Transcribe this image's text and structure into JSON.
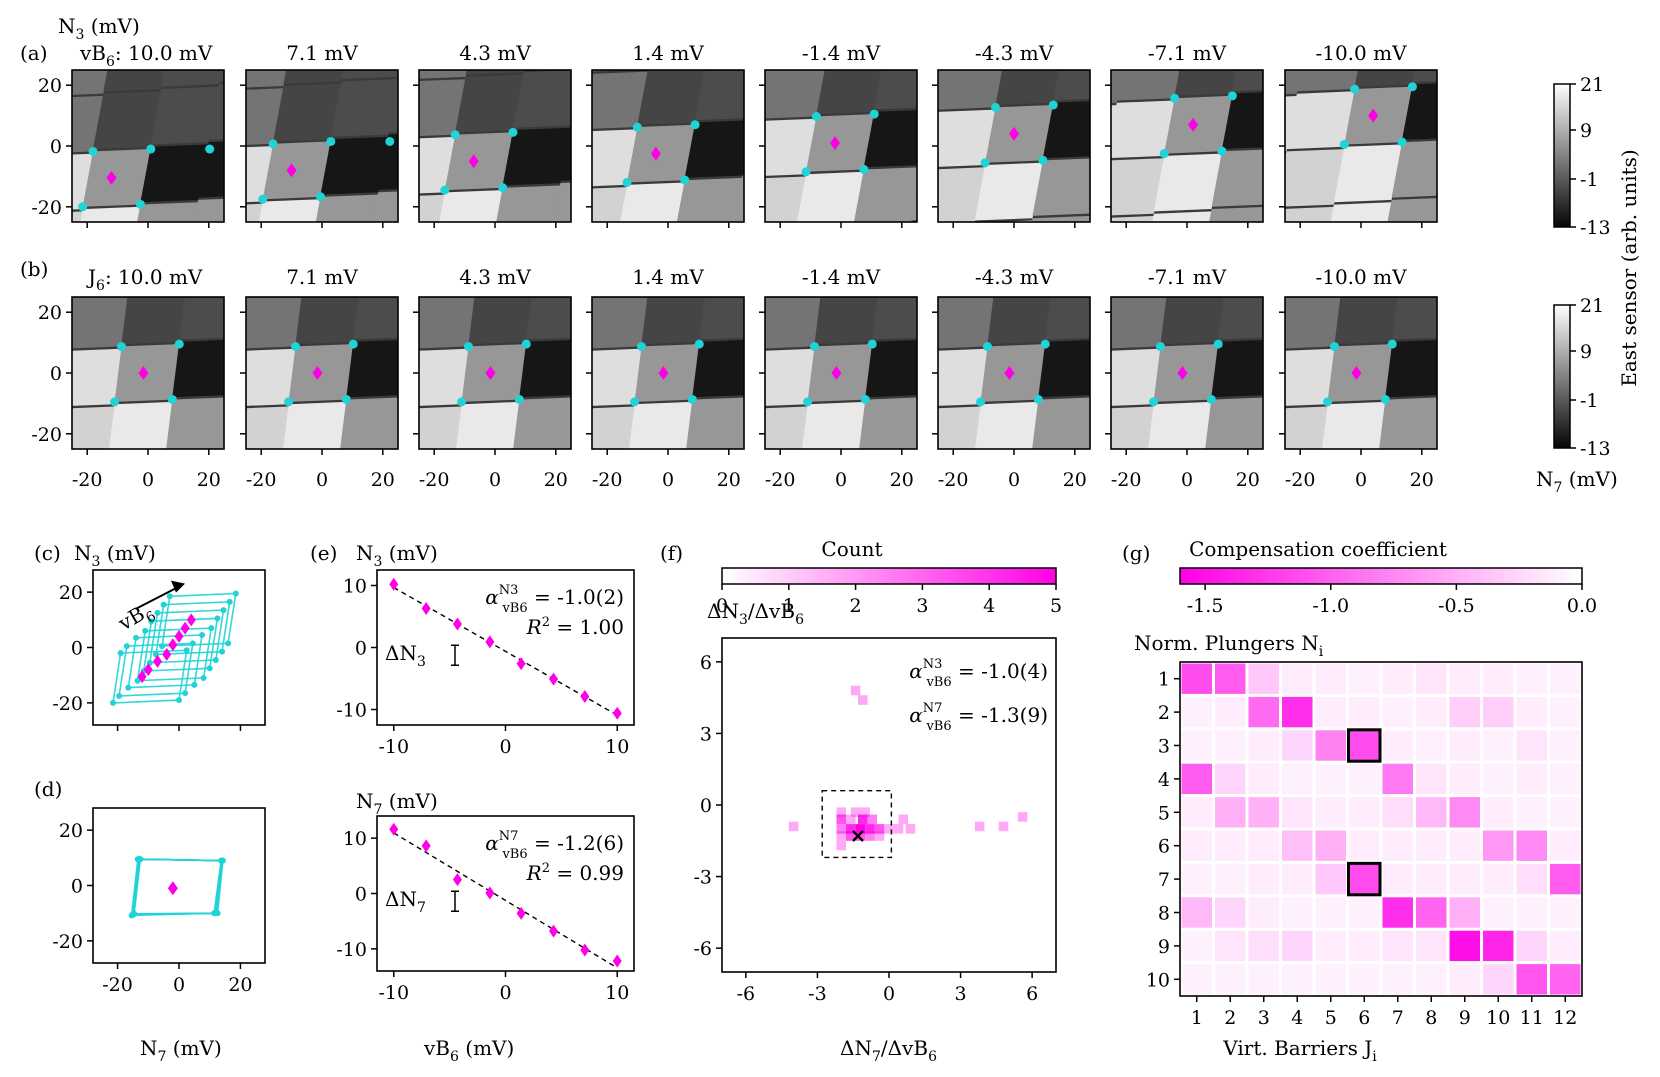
{
  "colors": {
    "cyan": "#1fd3d6",
    "magenta": "#ff00e6",
    "gray_low": "#0a0a0a",
    "gray_high": "#f2f2f2"
  },
  "labels": {
    "a": "(a)",
    "b": "(b)",
    "c": "(c)",
    "d": "(d)",
    "e": "(e)",
    "f": "(f)",
    "g": "(g)",
    "row_a_prefix": "vB",
    "row_a_prefix_sub": "6",
    "row_a_colon": ":",
    "row_b_prefix": "J",
    "row_b_prefix_sub": "6",
    "row_b_colon": ":",
    "n3_axis": "N",
    "n3_sub": "3",
    "mv": " (mV)",
    "n7_axis": "N",
    "n7_sub": "7",
    "cb_label": "East sensor (arb. units)",
    "cb_ticks": [
      "21",
      "9",
      "-1",
      "-13"
    ],
    "vb6_arrow": "vB",
    "vb6_arrow_sub": "6"
  },
  "row_values": [
    "10.0 mV",
    "7.1 mV",
    "4.3 mV",
    "1.4 mV",
    "-1.4 mV",
    "-4.3 mV",
    "-7.1 mV",
    "-10.0 mV"
  ],
  "chart_data": [
    {
      "panel": "a",
      "type": "heatmap",
      "xlabel": "N7 (mV)",
      "ylabel": "N3 (mV)",
      "xlim": [
        -25,
        25
      ],
      "ylim": [
        -25,
        25
      ],
      "xticks": [
        -20,
        0,
        20
      ],
      "yticks": [
        20,
        0,
        -20
      ],
      "colorbar": {
        "label": "East sensor (arb. units)",
        "ticks": [
          21,
          9,
          -1,
          -13
        ]
      },
      "vB6_mV": [
        10.0,
        7.1,
        4.3,
        1.4,
        -1.4,
        -4.3,
        -7.1,
        -10.0
      ],
      "centers_N7": [
        -12,
        -10,
        -7,
        -4,
        -2,
        0,
        2,
        4
      ],
      "centers_N3": [
        -10.5,
        -8,
        -5,
        -2.5,
        1,
        4,
        7,
        10
      ]
    },
    {
      "panel": "b",
      "type": "heatmap",
      "xlabel": "N7 (mV)",
      "ylabel": "N3 (mV)",
      "xlim": [
        -25,
        25
      ],
      "ylim": [
        -25,
        25
      ],
      "xticks": [
        -20,
        0,
        20
      ],
      "yticks": [
        20,
        0,
        -20
      ],
      "xtick_labels": [
        "-20",
        "0",
        "20"
      ],
      "colorbar": {
        "label": "East sensor (arb. units)",
        "ticks": [
          21,
          9,
          -1,
          -13
        ]
      },
      "J6_mV": [
        10.0,
        7.1,
        4.3,
        1.4,
        -1.4,
        -4.3,
        -7.1,
        -10.0
      ],
      "centers_N7": [
        -1.5,
        -1.5,
        -1.5,
        -1.5,
        -1.5,
        -1.5,
        -1.5,
        -1.5
      ],
      "centers_N3": [
        0,
        0,
        0,
        0,
        0,
        0,
        0,
        0
      ]
    },
    {
      "panel": "c",
      "type": "line",
      "ylabel": "N3 (mV)",
      "xlim": [
        -28,
        28
      ],
      "ylim": [
        -28,
        28
      ],
      "yticks": [
        20,
        0,
        -20
      ],
      "arrow_label": "vB6",
      "centers": [
        [
          -12,
          -10.5
        ],
        [
          -10,
          -8
        ],
        [
          -7,
          -5
        ],
        [
          -4,
          -2.5
        ],
        [
          -2,
          1
        ],
        [
          0,
          4
        ],
        [
          2,
          7
        ],
        [
          4,
          10
        ]
      ]
    },
    {
      "panel": "d",
      "type": "line",
      "xlabel": "N7 (mV)",
      "xlim": [
        -28,
        28
      ],
      "ylim": [
        -28,
        28
      ],
      "xticks": [
        -20,
        0,
        20
      ],
      "yticks": [
        20,
        0,
        -20
      ],
      "center": [
        -2,
        -1
      ]
    },
    {
      "panel": "e-top",
      "type": "scatter",
      "ylabel": "N3 (mV)",
      "xlim": [
        -11.5,
        11.5
      ],
      "ylim": [
        -12.5,
        12.5
      ],
      "xticks": [
        -10,
        0,
        10
      ],
      "yticks": [
        10,
        0,
        -10
      ],
      "x": [
        -10.0,
        -7.1,
        -4.3,
        -1.4,
        1.4,
        4.3,
        7.1,
        10.0
      ],
      "y": [
        10.2,
        6.3,
        3.8,
        0.9,
        -2.6,
        -5.1,
        -7.9,
        -10.6
      ],
      "fit_label": "α^{N3}_{vB6} = -1.0(2)",
      "alpha_text": "= -1.0(2)",
      "r2_text": "= 1.00",
      "delta_label": "ΔN3"
    },
    {
      "panel": "e-bottom",
      "type": "scatter",
      "xlabel": "vB6 (mV)",
      "ylabel": "N7 (mV)",
      "xlim": [
        -11.5,
        11.5
      ],
      "ylim": [
        -14,
        14
      ],
      "xticks": [
        -10,
        0,
        10
      ],
      "yticks": [
        10,
        0,
        -10
      ],
      "x": [
        -10.0,
        -7.1,
        -4.3,
        -1.4,
        1.4,
        4.3,
        7.1,
        10.0
      ],
      "y": [
        11.6,
        8.6,
        2.5,
        0.1,
        -3.6,
        -6.8,
        -10.2,
        -12.2
      ],
      "fit_label": "α^{N7}_{vB6} = -1.2(6)",
      "alpha_text": "= -1.2(6)",
      "r2_text": "= 0.99",
      "delta_label": "ΔN7"
    },
    {
      "panel": "f",
      "type": "heatmap",
      "xlabel": "ΔN7/ΔvB6",
      "ylabel": "ΔN3/ΔvB6",
      "xlim": [
        -7,
        7
      ],
      "ylim": [
        -7,
        7
      ],
      "xticks": [
        -6,
        -3,
        0,
        3,
        6
      ],
      "yticks": [
        6,
        3,
        0,
        -3,
        -6
      ],
      "colorbar": {
        "label": "Count",
        "ticks": [
          0,
          1,
          2,
          3,
          4,
          5
        ]
      },
      "annot1": "= -1.0(4)",
      "annot2": "= -1.3(9)",
      "cells": [
        [
          -1.4,
          4.8,
          1
        ],
        [
          -1.1,
          4.4,
          1
        ],
        [
          -4.0,
          -0.9,
          1
        ],
        [
          3.8,
          -0.9,
          1
        ],
        [
          4.8,
          -0.9,
          1
        ],
        [
          5.6,
          -0.5,
          1
        ],
        [
          -2.0,
          -0.3,
          1
        ],
        [
          -1.4,
          -0.3,
          1
        ],
        [
          -1.0,
          -0.3,
          1
        ],
        [
          0.6,
          -0.6,
          1
        ],
        [
          -2.0,
          -0.6,
          3
        ],
        [
          -1.6,
          -0.6,
          1
        ],
        [
          -1.1,
          -0.6,
          4
        ],
        [
          -0.7,
          -0.6,
          2
        ],
        [
          0.4,
          -1.0,
          1
        ],
        [
          0.9,
          -1.0,
          1
        ],
        [
          -2.0,
          -1.0,
          2
        ],
        [
          -1.6,
          -1.0,
          4
        ],
        [
          -1.2,
          -1.0,
          5
        ],
        [
          -0.8,
          -1.0,
          4
        ],
        [
          -0.4,
          -1.0,
          3
        ],
        [
          0.0,
          -1.0,
          1
        ],
        [
          -2.0,
          -1.3,
          1
        ],
        [
          -1.6,
          -1.3,
          3
        ],
        [
          -1.2,
          -1.3,
          3
        ],
        [
          -0.8,
          -1.3,
          2
        ],
        [
          -0.4,
          -1.3,
          1
        ],
        [
          -2.0,
          -1.7,
          1
        ]
      ],
      "mean_marker": [
        -1.3,
        -1.3
      ],
      "box": [
        [
          -2.8,
          -2.2
        ],
        [
          0.1,
          0.6
        ]
      ]
    },
    {
      "panel": "g",
      "type": "heatmap",
      "title": "Compensation coefficient",
      "xlabel": "Virt. Barriers Ji",
      "ylabel": "Norm. Plungers Ni",
      "xticks": [
        1,
        2,
        3,
        4,
        5,
        6,
        7,
        8,
        9,
        10,
        11,
        12
      ],
      "yticks": [
        1,
        2,
        3,
        4,
        5,
        6,
        7,
        8,
        9,
        10
      ],
      "colorbar": {
        "label": "Compensation coefficient",
        "ticks": [
          -1.5,
          -1.0,
          -0.5,
          0.0
        ]
      },
      "highlight_cells": [
        [
          3,
          6
        ],
        [
          7,
          6
        ]
      ],
      "values": [
        [
          -1.1,
          -1.0,
          -0.3,
          -0.05,
          -0.05,
          -0.03,
          -0.05,
          -0.1,
          -0.05,
          -0.05,
          -0.03,
          -0.03
        ],
        [
          -0.03,
          -0.05,
          -0.9,
          -1.3,
          -0.05,
          -0.05,
          -0.03,
          -0.05,
          -0.25,
          -0.25,
          -0.05,
          -0.03
        ],
        [
          -0.03,
          -0.03,
          -0.05,
          -0.2,
          -0.75,
          -1.1,
          -0.05,
          -0.03,
          -0.05,
          -0.03,
          -0.1,
          -0.03
        ],
        [
          -1.0,
          -0.2,
          -0.05,
          -0.03,
          -0.03,
          -0.03,
          -0.8,
          -0.1,
          -0.05,
          -0.03,
          -0.05,
          -0.03
        ],
        [
          -0.05,
          -0.45,
          -0.45,
          -0.1,
          -0.05,
          -0.05,
          -0.15,
          -0.4,
          -0.7,
          -0.05,
          -0.03,
          -0.03
        ],
        [
          -0.05,
          -0.05,
          -0.05,
          -0.35,
          -0.45,
          -0.05,
          -0.05,
          -0.05,
          -0.05,
          -0.6,
          -0.7,
          -0.05
        ],
        [
          -0.03,
          -0.03,
          -0.05,
          -0.05,
          -0.3,
          -1.1,
          -0.05,
          -0.05,
          -0.05,
          -0.05,
          -0.15,
          -1.0
        ],
        [
          -0.4,
          -0.2,
          -0.05,
          -0.03,
          -0.03,
          -0.03,
          -1.3,
          -0.95,
          -0.45,
          -0.03,
          -0.03,
          -0.03
        ],
        [
          -0.03,
          -0.1,
          -0.15,
          -0.2,
          -0.05,
          -0.05,
          -0.1,
          -0.1,
          -1.5,
          -1.35,
          -0.2,
          -0.05
        ],
        [
          -0.03,
          -0.03,
          -0.03,
          -0.03,
          -0.03,
          -0.03,
          -0.03,
          -0.03,
          -0.05,
          -0.2,
          -1.05,
          -0.95
        ]
      ]
    }
  ],
  "f_colorbar_title": "Count",
  "g_colorbar_title": "Compensation coefficient",
  "g_ylabel_text": "Norm. Plungers N",
  "g_ylabel_sub": "i",
  "g_xlabel_text": "Virt. Barriers J",
  "g_xlabel_sub": "i",
  "f_ylabel": "ΔN",
  "f_ylabel_sub": "3",
  "f_ylabel_rest": "/ΔvB",
  "f_ylabel_sub2": "6",
  "f_xlabel": "ΔN",
  "f_xlabel_sub": "7",
  "f_xlabel_rest": "/ΔvB",
  "f_xlabel_sub2": "6",
  "e_xlabel": "vB",
  "e_xlabel_sub": "6"
}
